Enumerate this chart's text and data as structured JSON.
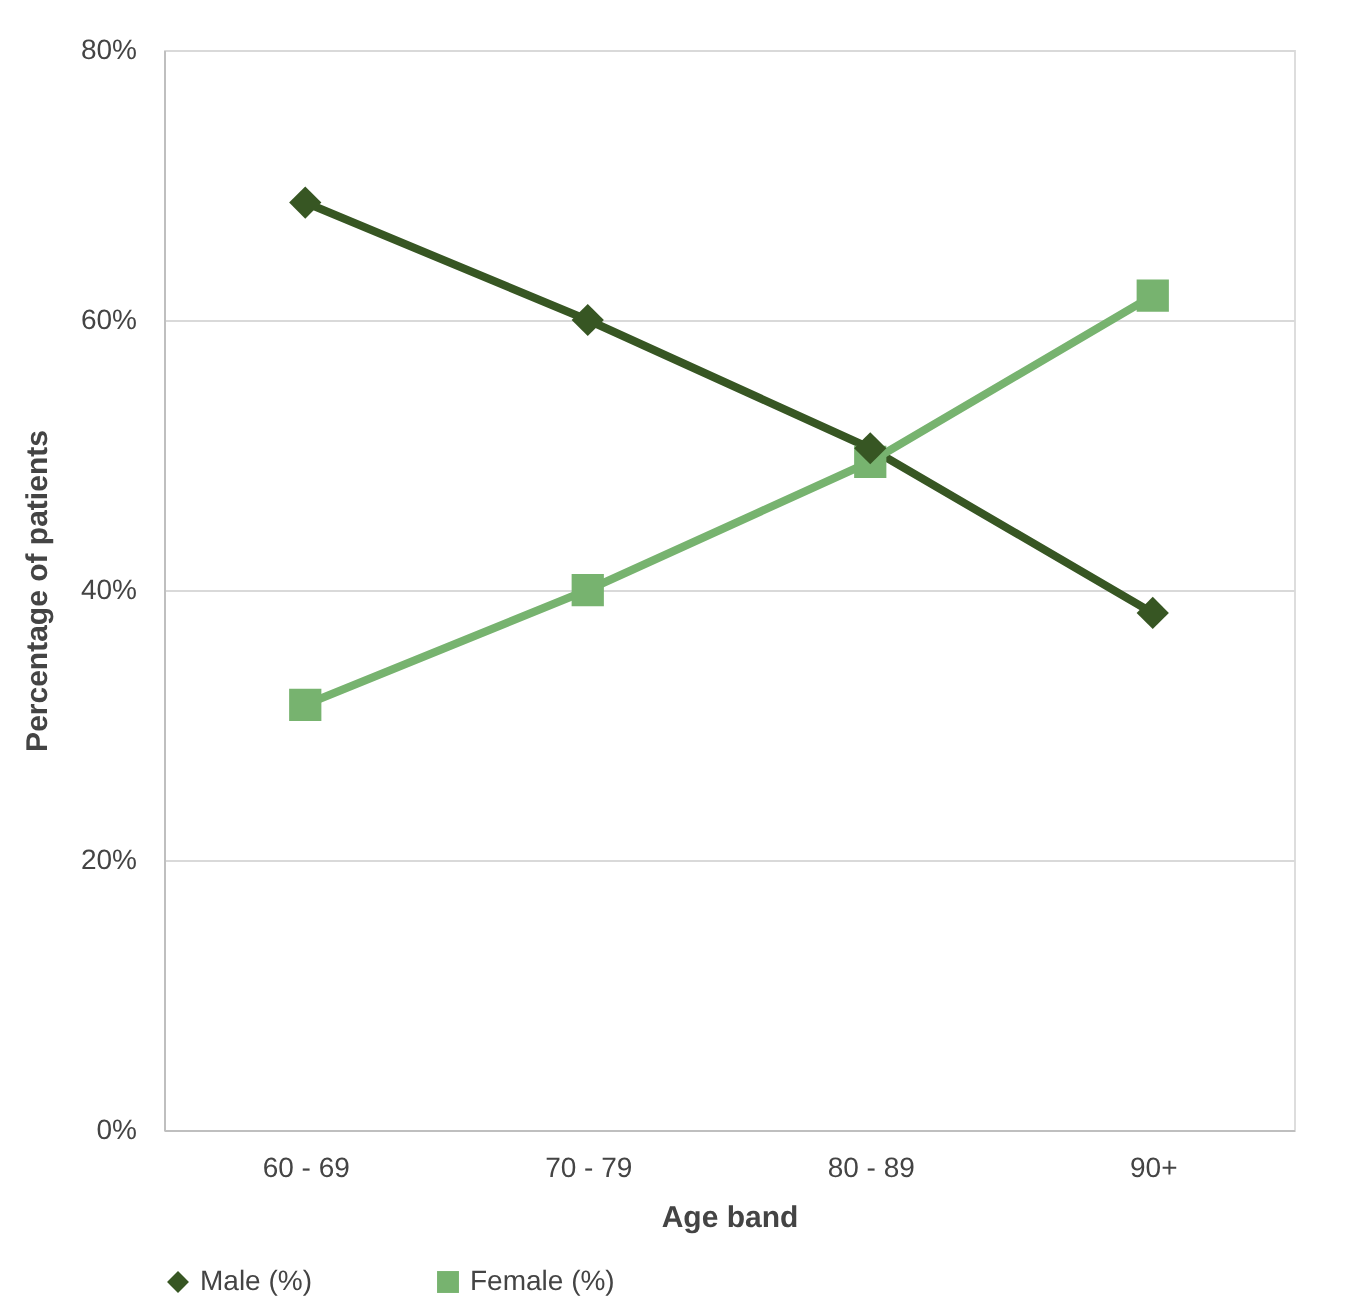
{
  "chart_data": {
    "type": "line",
    "xlabel": "Age band",
    "ylabel": "Percentage of patients",
    "categories": [
      "60 - 69",
      "70 - 79",
      "80 - 89",
      "90+"
    ],
    "series": [
      {
        "name": "Male (%)",
        "color": "#375623",
        "marker": "diamond",
        "values": [
          68.7,
          60.0,
          50.5,
          38.3
        ]
      },
      {
        "name": "Female (%)",
        "color": "#77b36f",
        "marker": "square",
        "values": [
          31.5,
          40.0,
          49.5,
          61.8
        ]
      }
    ],
    "ylim": [
      0,
      80
    ],
    "yticks": [
      {
        "value": 0,
        "label": "0%"
      },
      {
        "value": 20,
        "label": "20%"
      },
      {
        "value": 40,
        "label": "40%"
      },
      {
        "value": 60,
        "label": "60%"
      },
      {
        "value": 80,
        "label": "80%"
      }
    ],
    "grid": "y",
    "legend": "bottom",
    "line_style": "solid"
  }
}
